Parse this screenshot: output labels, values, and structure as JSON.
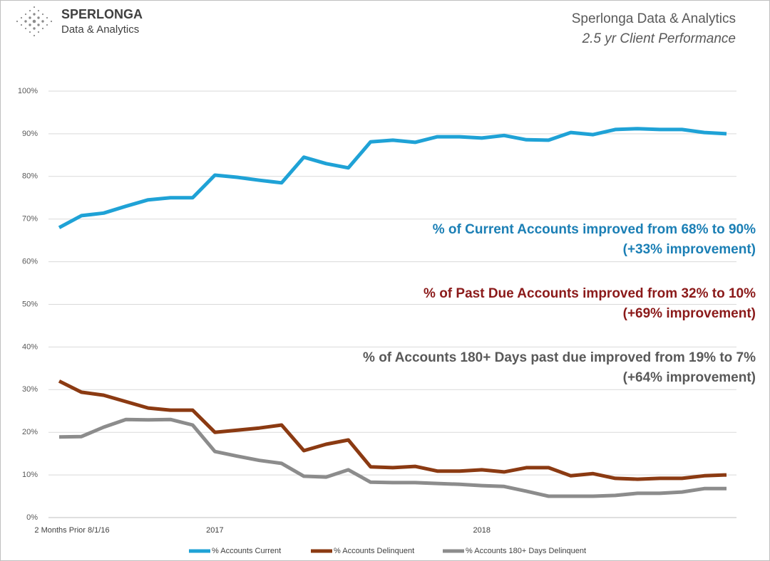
{
  "chart_data": {
    "type": "line",
    "logo": {
      "name": "SPERLONGA",
      "tagline": "Data & Analytics"
    },
    "title": "Sperlonga Data & Analytics",
    "subtitle": "2.5 yr Client Performance",
    "categories": [
      "2 Months Prior 8/1/16",
      null,
      null,
      null,
      null,
      null,
      null,
      "2017",
      null,
      null,
      null,
      null,
      null,
      null,
      null,
      null,
      null,
      null,
      null,
      "2018",
      null,
      null,
      null,
      null,
      null,
      null,
      null,
      null,
      null,
      null,
      null
    ],
    "ylim": [
      0,
      100
    ],
    "yticks": [
      {
        "value": 0,
        "label": "0%"
      },
      {
        "value": 10,
        "label": "10%"
      },
      {
        "value": 20,
        "label": "20%"
      },
      {
        "value": 30,
        "label": "30%"
      },
      {
        "value": 40,
        "label": "40%"
      },
      {
        "value": 50,
        "label": "50%"
      },
      {
        "value": 60,
        "label": "60%"
      },
      {
        "value": 70,
        "label": "70%"
      },
      {
        "value": 80,
        "label": "80%"
      },
      {
        "value": 90,
        "label": "90%"
      },
      {
        "value": 100,
        "label": "100%"
      }
    ],
    "grid": true,
    "legend": "bottom",
    "series": [
      {
        "name": "% Accounts Current",
        "color": "#1fa2d6",
        "values": [
          68,
          70.8,
          71.4,
          73,
          74.5,
          75,
          75,
          80.3,
          79.8,
          79.1,
          78.5,
          84.5,
          83,
          82,
          88.1,
          88.5,
          88,
          89.3,
          89.3,
          89,
          89.6,
          88.6,
          88.5,
          90.3,
          89.8,
          91,
          91.2,
          91,
          91,
          90.3,
          90
        ]
      },
      {
        "name": "% Accounts Delinquent",
        "color": "#8b3a12",
        "values": [
          32,
          29.4,
          28.7,
          27.2,
          25.7,
          25.2,
          25.2,
          20,
          20.5,
          21,
          21.7,
          15.7,
          17.2,
          18.2,
          11.9,
          11.7,
          12,
          10.9,
          10.9,
          11.2,
          10.7,
          11.7,
          11.7,
          9.8,
          10.3,
          9.2,
          9,
          9.2,
          9.2,
          9.8,
          10
        ]
      },
      {
        "name": "% Accounts 180+ Days Delinquent",
        "color": "#8c8c8c",
        "values": [
          18.9,
          19,
          21.2,
          23,
          22.9,
          23,
          21.7,
          15.5,
          14.4,
          13.4,
          12.7,
          9.7,
          9.5,
          11.2,
          8.3,
          8.2,
          8.2,
          8,
          7.8,
          7.5,
          7.3,
          6.2,
          5,
          5,
          5,
          5.2,
          5.7,
          5.7,
          6,
          6.8,
          6.8
        ]
      }
    ],
    "annotations": [
      {
        "color": "#1b7fb5",
        "lines": [
          "% of Current Accounts improved from  68% to 90%",
          "(+33% improvement)"
        ]
      },
      {
        "color": "#8b1a1a",
        "lines": [
          "% of Past Due Accounts improved from 32% to 10%",
          "(+69% improvement)"
        ]
      },
      {
        "color": "#595959",
        "lines": [
          "% of Accounts 180+ Days past due improved from 19% to 7%",
          "(+64% improvement)"
        ]
      }
    ]
  }
}
